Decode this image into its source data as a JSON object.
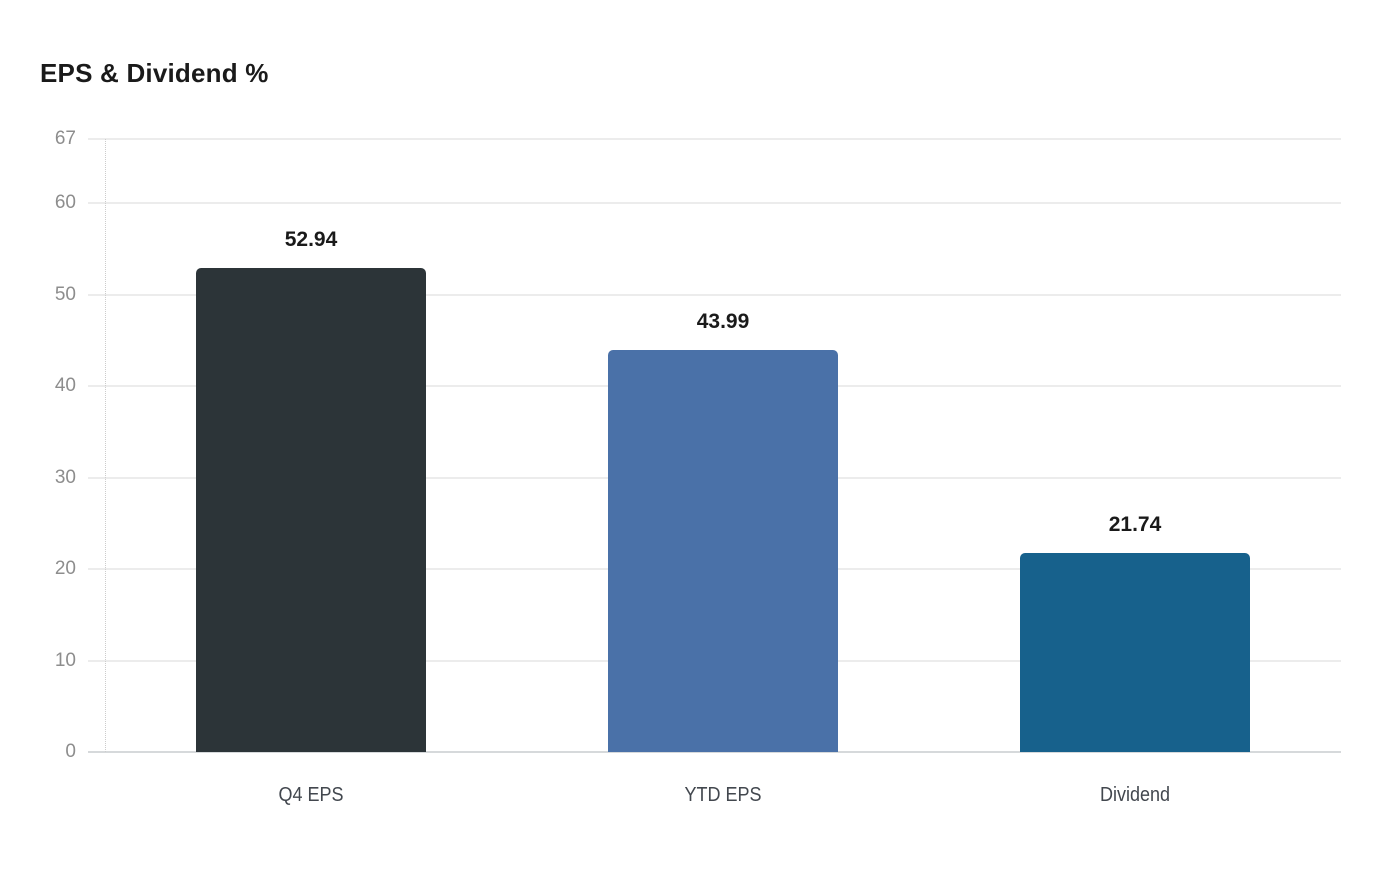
{
  "chart_data": {
    "type": "bar",
    "title": "EPS & Dividend %",
    "categories": [
      "Q4 EPS",
      "YTD EPS",
      "Dividend"
    ],
    "values": [
      52.94,
      43.99,
      21.74
    ],
    "value_labels": [
      "52.94",
      "43.99",
      "21.74"
    ],
    "bar_colors": [
      "#2c3438",
      "#4a71a8",
      "#17618c"
    ],
    "xlabel": "",
    "ylabel": "",
    "ylim": [
      0,
      67
    ],
    "yticks": [
      0,
      10,
      20,
      30,
      40,
      50,
      60,
      67
    ],
    "grid": "horizontal",
    "legend": "none"
  },
  "colors": {
    "background": "#ffffff",
    "title_text": "#1a1a1a",
    "tick_text": "#8d8d8d",
    "category_text": "#42474e",
    "value_text": "#1a1a1a",
    "gridline": "#ececec",
    "zero_line": "#d6d9db",
    "dotted_axis": "#cccccc"
  }
}
